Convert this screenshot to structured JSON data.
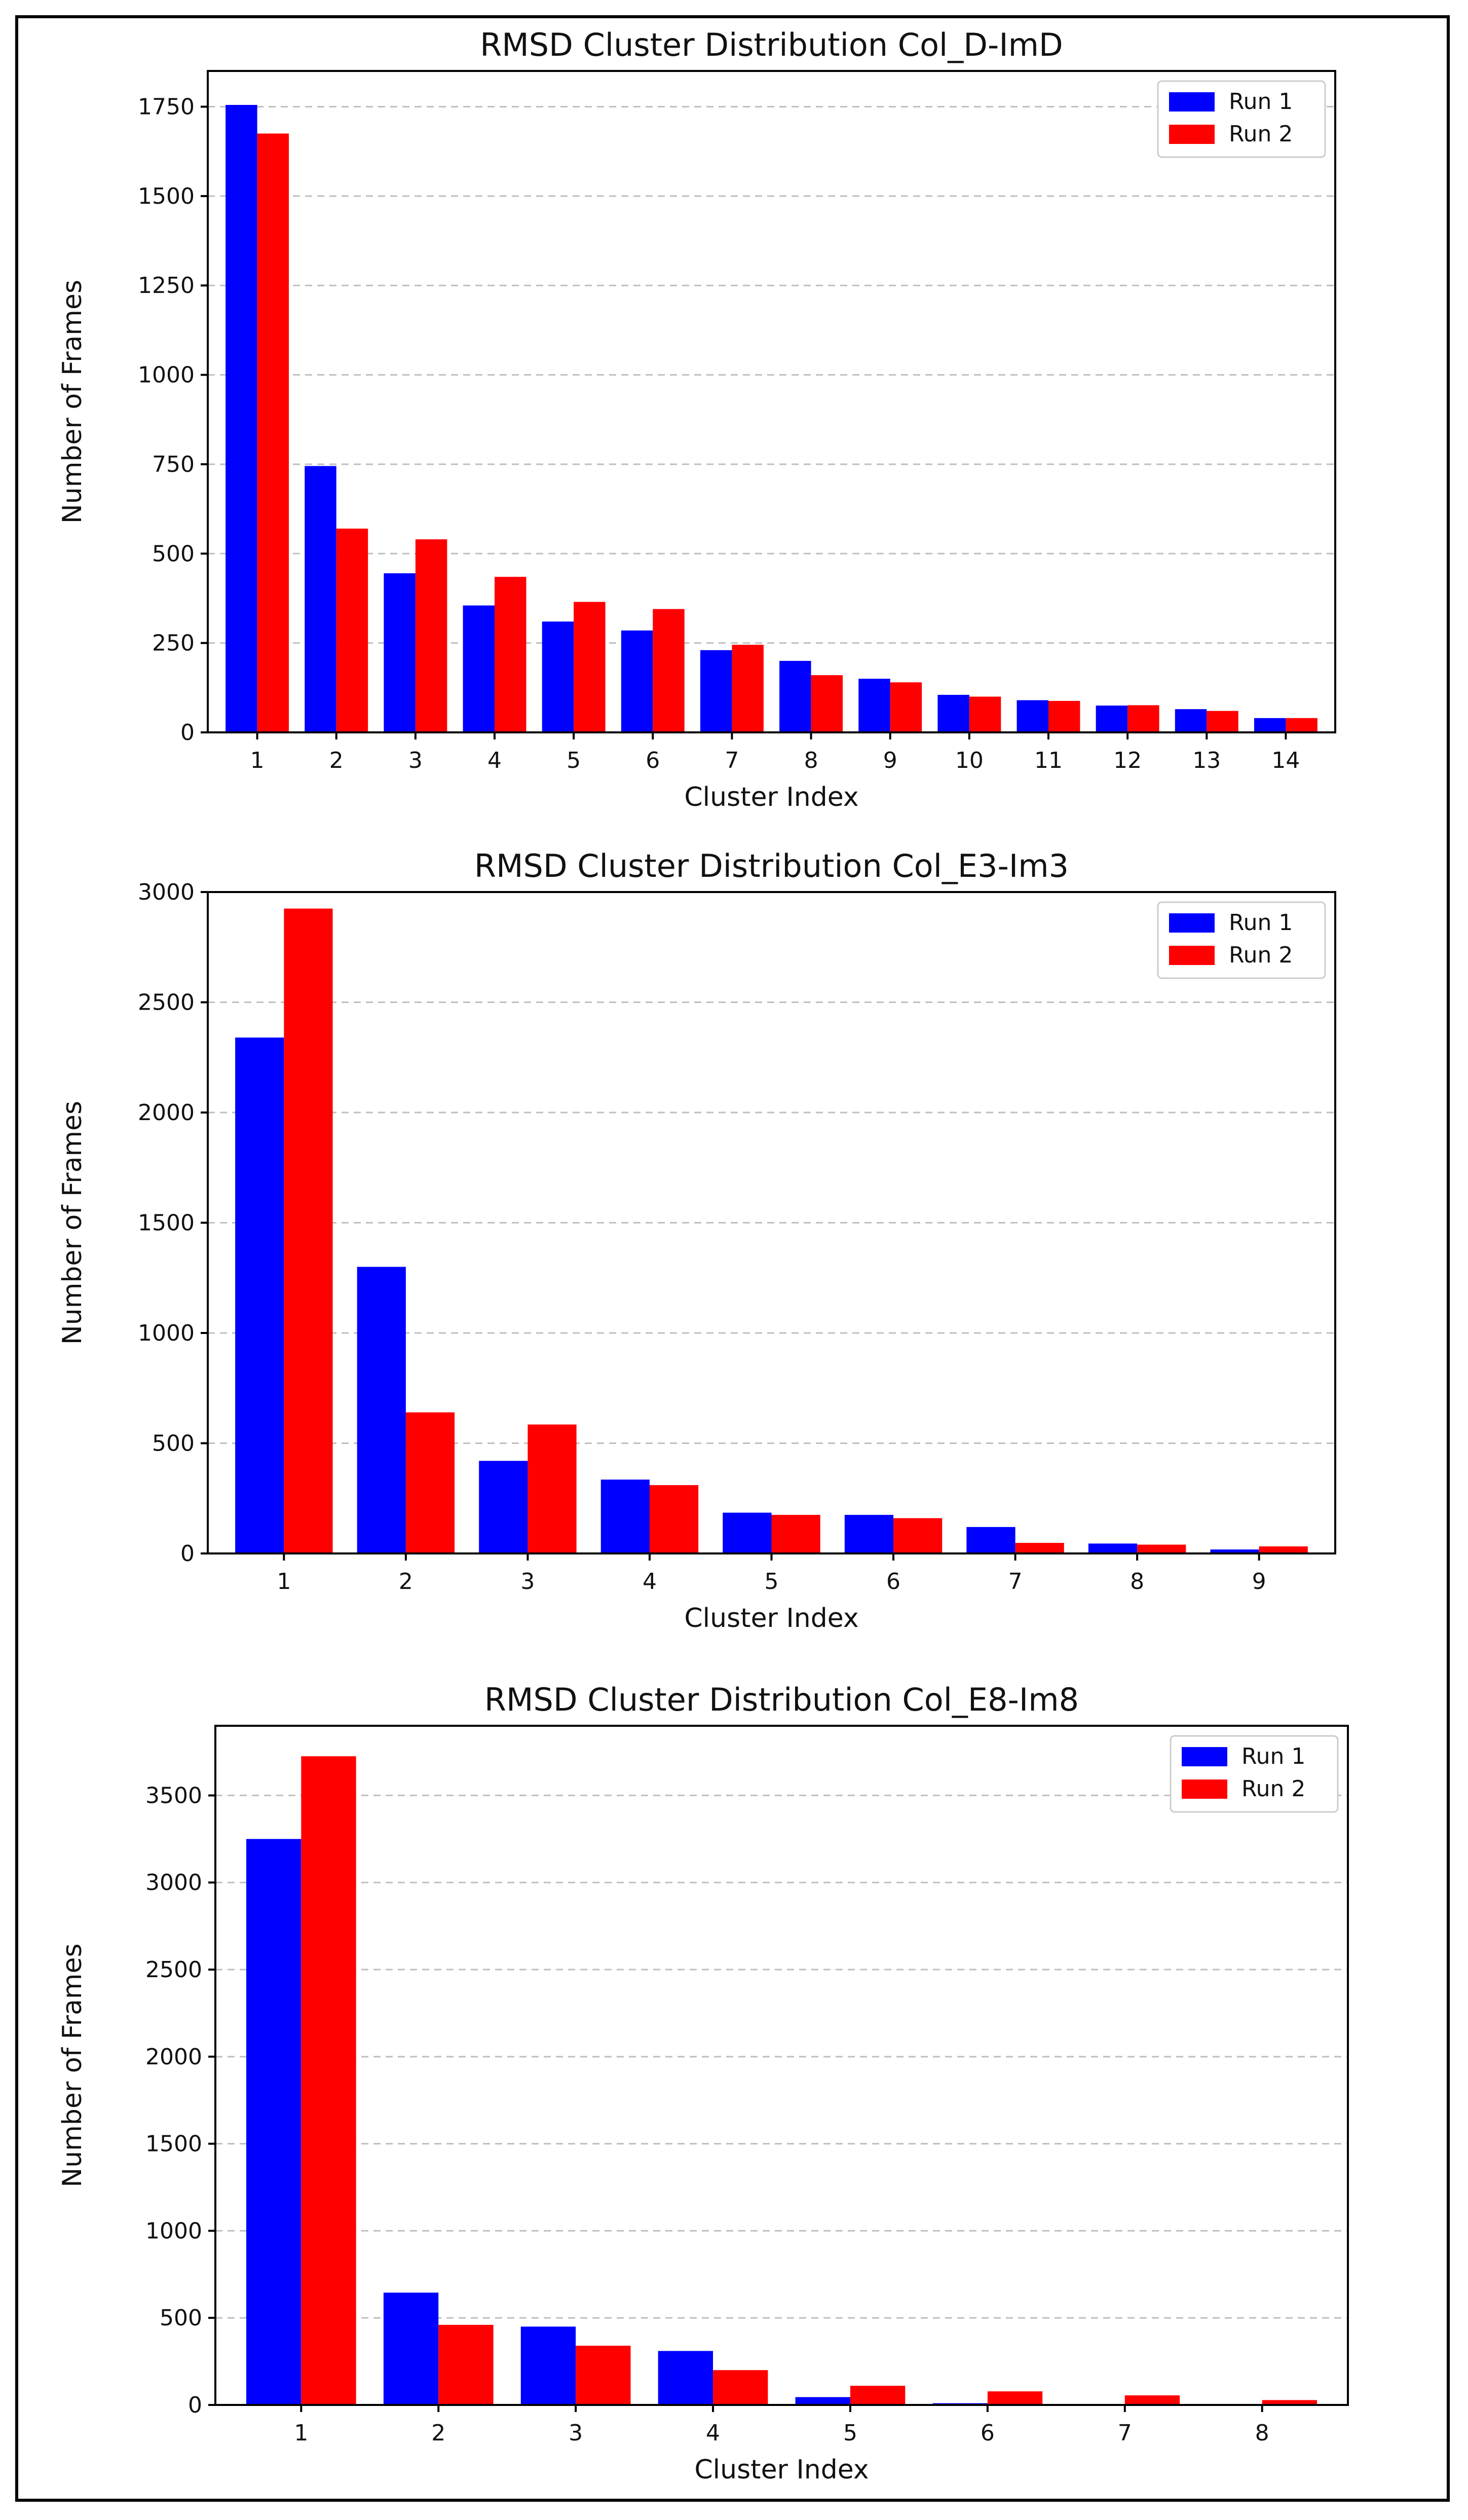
{
  "colors": {
    "run1": "#0000ff",
    "run2": "#ff0000",
    "grid": "#bfbfbf",
    "axis": "#000000"
  },
  "chart_data": [
    {
      "type": "bar",
      "title": "RMSD Cluster Distribution Col_D-ImD",
      "xlabel": "Cluster Index",
      "ylabel": "Number of Frames",
      "categories": [
        "1",
        "2",
        "3",
        "4",
        "5",
        "6",
        "7",
        "8",
        "9",
        "10",
        "11",
        "12",
        "13",
        "14"
      ],
      "ylim": [
        0,
        1850
      ],
      "yticks": [
        0,
        250,
        500,
        750,
        1000,
        1250,
        1500,
        1750
      ],
      "grid": "y-dashed",
      "legend": "top-right",
      "series": [
        {
          "name": "Run 1",
          "color": "#0000ff",
          "values": [
            1755,
            745,
            445,
            355,
            310,
            285,
            230,
            200,
            150,
            105,
            90,
            75,
            65,
            40
          ]
        },
        {
          "name": "Run 2",
          "color": "#ff0000",
          "values": [
            1675,
            570,
            540,
            435,
            365,
            345,
            245,
            160,
            140,
            100,
            88,
            76,
            60,
            40
          ]
        }
      ]
    },
    {
      "type": "bar",
      "title": "RMSD Cluster Distribution Col_E3-Im3",
      "xlabel": "Cluster Index",
      "ylabel": "Number of Frames",
      "categories": [
        "1",
        "2",
        "3",
        "4",
        "5",
        "6",
        "7",
        "8",
        "9"
      ],
      "ylim": [
        0,
        3000
      ],
      "yticks": [
        0,
        500,
        1000,
        1500,
        2000,
        2500,
        3000
      ],
      "grid": "y-dashed",
      "legend": "top-right",
      "series": [
        {
          "name": "Run 1",
          "color": "#0000ff",
          "values": [
            2340,
            1300,
            420,
            335,
            185,
            175,
            120,
            45,
            18
          ]
        },
        {
          "name": "Run 2",
          "color": "#ff0000",
          "values": [
            2925,
            640,
            585,
            310,
            175,
            160,
            48,
            40,
            32
          ]
        }
      ]
    },
    {
      "type": "bar",
      "title": "RMSD Cluster Distribution Col_E8-Im8",
      "xlabel": "Cluster Index",
      "ylabel": "Number of Frames",
      "categories": [
        "1",
        "2",
        "3",
        "4",
        "5",
        "6",
        "7",
        "8"
      ],
      "ylim": [
        0,
        3900
      ],
      "yticks": [
        0,
        500,
        1000,
        1500,
        2000,
        2500,
        3000,
        3500
      ],
      "grid": "y-dashed",
      "legend": "top-right",
      "series": [
        {
          "name": "Run 1",
          "color": "#0000ff",
          "values": [
            3250,
            645,
            450,
            310,
            45,
            10,
            0,
            0
          ]
        },
        {
          "name": "Run 2",
          "color": "#ff0000",
          "values": [
            3725,
            460,
            340,
            200,
            110,
            78,
            55,
            28
          ]
        }
      ]
    }
  ]
}
